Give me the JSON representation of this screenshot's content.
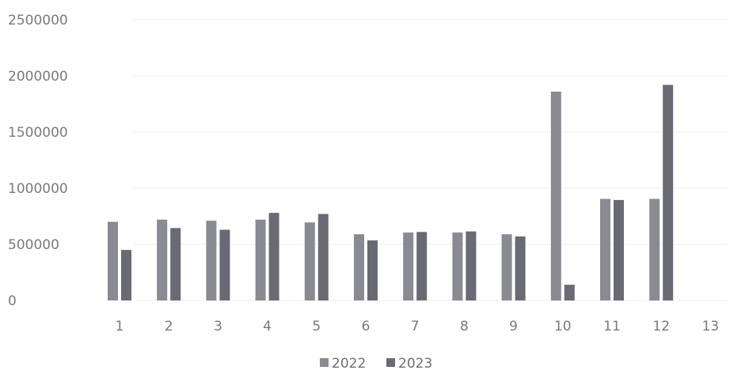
{
  "chart_data": {
    "type": "bar",
    "title": "",
    "xlabel": "",
    "ylabel": "",
    "categories": [
      "1",
      "2",
      "3",
      "4",
      "5",
      "6",
      "7",
      "8",
      "9",
      "10",
      "11",
      "12",
      "13"
    ],
    "series": [
      {
        "name": "2022",
        "color": "#8a8a93",
        "values": [
          700000,
          720000,
          710000,
          720000,
          695000,
          590000,
          605000,
          605000,
          590000,
          1860000,
          905000,
          905000,
          null
        ]
      },
      {
        "name": "2023",
        "color": "#6a6a74",
        "values": [
          450000,
          645000,
          630000,
          780000,
          770000,
          535000,
          610000,
          615000,
          570000,
          140000,
          895000,
          1920000,
          null
        ]
      }
    ],
    "ylim": [
      0,
      2500000
    ],
    "yticks": [
      "0",
      "500000",
      "1000000",
      "1500000",
      "2000000",
      "2500000"
    ],
    "grid": true,
    "legend": "bottom-center"
  }
}
